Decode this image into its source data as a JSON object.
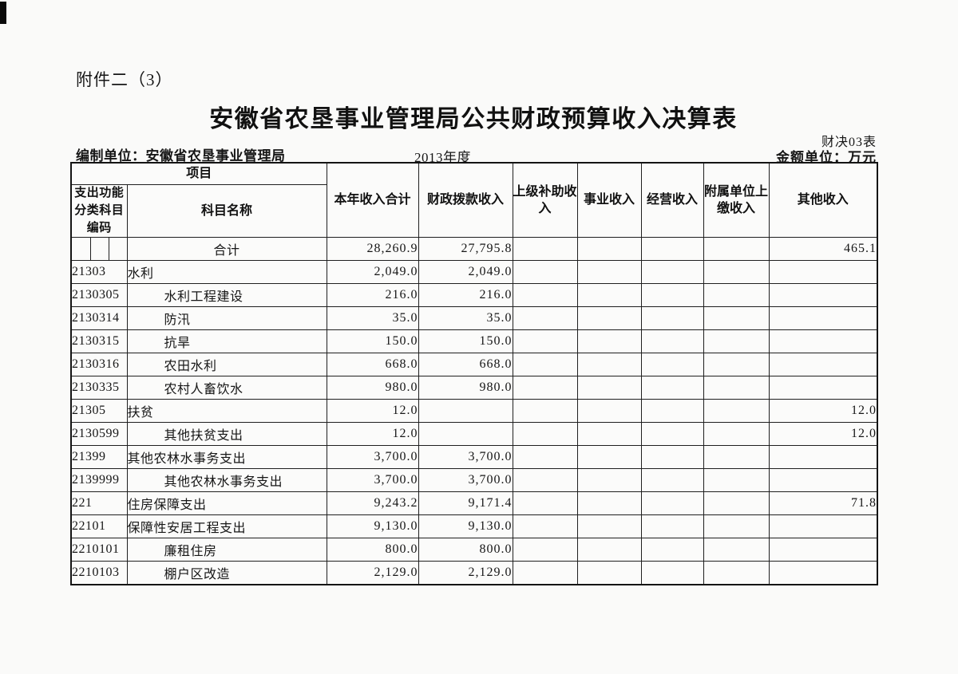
{
  "page": {
    "attachment_label": "附件二（3）",
    "title": "安徽省农垦事业管理局公共财政预算收入决算表",
    "form_code": "财决03表",
    "prepared_by": "编制单位：安徽省农垦事业管理局",
    "period": "2013年度",
    "unit_label": "金额单位：万元"
  },
  "table": {
    "header": {
      "project": "项目",
      "code": "支出功能分类科目编码",
      "subject_name": "科目名称",
      "columns": [
        "本年收入合计",
        "财政拨款收入",
        "上级补助收入",
        "事业收入",
        "经营收入",
        "附属单位上缴收入",
        "其他收入"
      ]
    },
    "rows": [
      {
        "code": "",
        "name": "合计",
        "center": true,
        "split_code": true,
        "values": [
          "28,260.9",
          "27,795.8",
          "",
          "",
          "",
          "",
          "465.1"
        ]
      },
      {
        "code": "21303",
        "name": "水利",
        "indent": false,
        "values": [
          "2,049.0",
          "2,049.0",
          "",
          "",
          "",
          "",
          ""
        ]
      },
      {
        "code": "2130305",
        "name": "水利工程建设",
        "indent": true,
        "values": [
          "216.0",
          "216.0",
          "",
          "",
          "",
          "",
          ""
        ]
      },
      {
        "code": "2130314",
        "name": "防汛",
        "indent": true,
        "values": [
          "35.0",
          "35.0",
          "",
          "",
          "",
          "",
          ""
        ]
      },
      {
        "code": "2130315",
        "name": "抗旱",
        "indent": true,
        "values": [
          "150.0",
          "150.0",
          "",
          "",
          "",
          "",
          ""
        ]
      },
      {
        "code": "2130316",
        "name": "农田水利",
        "indent": true,
        "values": [
          "668.0",
          "668.0",
          "",
          "",
          "",
          "",
          ""
        ]
      },
      {
        "code": "2130335",
        "name": "农村人畜饮水",
        "indent": true,
        "values": [
          "980.0",
          "980.0",
          "",
          "",
          "",
          "",
          ""
        ]
      },
      {
        "code": "21305",
        "name": "扶贫",
        "indent": false,
        "values": [
          "12.0",
          "",
          "",
          "",
          "",
          "",
          "12.0"
        ]
      },
      {
        "code": "2130599",
        "name": "其他扶贫支出",
        "indent": true,
        "values": [
          "12.0",
          "",
          "",
          "",
          "",
          "",
          "12.0"
        ]
      },
      {
        "code": "21399",
        "name": "其他农林水事务支出",
        "indent": false,
        "values": [
          "3,700.0",
          "3,700.0",
          "",
          "",
          "",
          "",
          ""
        ]
      },
      {
        "code": "2139999",
        "name": "其他农林水事务支出",
        "indent": true,
        "values": [
          "3,700.0",
          "3,700.0",
          "",
          "",
          "",
          "",
          ""
        ]
      },
      {
        "code": "221",
        "name": "住房保障支出",
        "indent": false,
        "values": [
          "9,243.2",
          "9,171.4",
          "",
          "",
          "",
          "",
          "71.8"
        ]
      },
      {
        "code": "22101",
        "name": "保障性安居工程支出",
        "indent": false,
        "values": [
          "9,130.0",
          "9,130.0",
          "",
          "",
          "",
          "",
          ""
        ]
      },
      {
        "code": "2210101",
        "name": "廉租住房",
        "indent": true,
        "values": [
          "800.0",
          "800.0",
          "",
          "",
          "",
          "",
          ""
        ]
      },
      {
        "code": "2210103",
        "name": "棚户区改造",
        "indent": true,
        "values": [
          "2,129.0",
          "2,129.0",
          "",
          "",
          "",
          "",
          ""
        ]
      }
    ]
  }
}
